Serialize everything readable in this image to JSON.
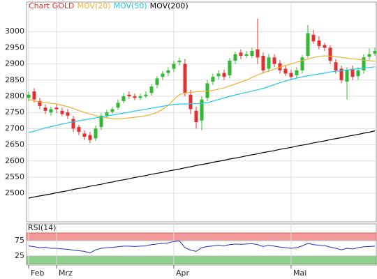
{
  "chart_data": [
    {
      "type": "candlestick",
      "title": "Chart GOLD",
      "title_color": "#e03030",
      "up_color": "#33b833",
      "down_color": "#e03030",
      "open": [
        2795,
        2815,
        2785,
        2765,
        2750,
        2765,
        2755,
        2750,
        2730,
        2705,
        2685,
        2680,
        2670,
        2705,
        2740,
        2752,
        2765,
        2785,
        2805,
        2800,
        2795,
        2800,
        2810,
        2835,
        2860,
        2872,
        2885,
        2905,
        2900,
        2805,
        2755,
        2725,
        2795,
        2845,
        2862,
        2872,
        2865,
        2910,
        2935,
        2925,
        2925,
        2945,
        2925,
        2885,
        2920,
        2902,
        2885,
        2872,
        2865,
        2880,
        2925,
        2990,
        2972,
        2958,
        2950,
        2905,
        2885,
        2845,
        2885,
        2862,
        2880,
        2922,
        2932
      ],
      "high": [
        2815,
        2825,
        2795,
        2775,
        2768,
        2775,
        2765,
        2760,
        2740,
        2712,
        2695,
        2690,
        2710,
        2748,
        2758,
        2768,
        2790,
        2810,
        2815,
        2808,
        2808,
        2815,
        2838,
        2862,
        2878,
        2890,
        2910,
        2920,
        2915,
        2820,
        2768,
        2800,
        2850,
        2870,
        2880,
        2882,
        2918,
        2938,
        2945,
        2940,
        2950,
        3040,
        2935,
        2930,
        2930,
        2912,
        2895,
        2882,
        2890,
        2928,
        3020,
        3005,
        2985,
        2965,
        2958,
        2915,
        2895,
        2890,
        2895,
        2890,
        2930,
        2948,
        2950
      ],
      "low": [
        2785,
        2780,
        2760,
        2745,
        2740,
        2748,
        2738,
        2730,
        2690,
        2680,
        2665,
        2655,
        2662,
        2695,
        2732,
        2745,
        2758,
        2778,
        2792,
        2788,
        2788,
        2795,
        2802,
        2825,
        2850,
        2862,
        2875,
        2895,
        2800,
        2745,
        2700,
        2695,
        2785,
        2835,
        2852,
        2850,
        2855,
        2900,
        2915,
        2918,
        2918,
        2900,
        2870,
        2875,
        2890,
        2870,
        2862,
        2850,
        2855,
        2870,
        2918,
        2962,
        2945,
        2940,
        2900,
        2870,
        2840,
        2790,
        2850,
        2850,
        2870,
        2912,
        2925
      ],
      "close": [
        2805,
        2790,
        2770,
        2755,
        2760,
        2760,
        2745,
        2740,
        2700,
        2690,
        2675,
        2665,
        2700,
        2740,
        2750,
        2760,
        2780,
        2800,
        2800,
        2795,
        2800,
        2805,
        2830,
        2855,
        2870,
        2880,
        2900,
        2910,
        2810,
        2760,
        2720,
        2790,
        2840,
        2860,
        2870,
        2860,
        2910,
        2930,
        2925,
        2930,
        2940,
        2920,
        2880,
        2920,
        2900,
        2880,
        2870,
        2860,
        2880,
        2920,
        2995,
        2970,
        2955,
        2950,
        2910,
        2880,
        2850,
        2880,
        2860,
        2880,
        2920,
        2930,
        2940
      ],
      "series": [
        {
          "name": "MOV(20)",
          "color": "#f0b030",
          "values": [
            2790,
            2786,
            2782,
            2780,
            2778,
            2776,
            2772,
            2768,
            2762,
            2756,
            2750,
            2745,
            2740,
            2736,
            2733,
            2731,
            2730,
            2731,
            2733,
            2735,
            2737,
            2740,
            2744,
            2750,
            2760,
            2772,
            2790,
            2805,
            2810,
            2812,
            2814,
            2815,
            2816,
            2818,
            2822,
            2826,
            2832,
            2838,
            2844,
            2850,
            2858,
            2866,
            2872,
            2878,
            2884,
            2890,
            2895,
            2900,
            2905,
            2910,
            2915,
            2920,
            2923,
            2925,
            2924,
            2922,
            2920,
            2918,
            2916,
            2914,
            2912,
            2910,
            2908
          ]
        },
        {
          "name": "MOV(50)",
          "color": "#20c8e8",
          "values": [
            2688,
            2692,
            2697,
            2702,
            2706,
            2710,
            2714,
            2718,
            2721,
            2724,
            2727,
            2730,
            2733,
            2736,
            2739,
            2742,
            2745,
            2748,
            2751,
            2754,
            2757,
            2760,
            2763,
            2766,
            2769,
            2772,
            2775,
            2776,
            2776,
            2777,
            2777,
            2778,
            2780,
            2785,
            2790,
            2795,
            2800,
            2804,
            2808,
            2812,
            2816,
            2820,
            2824,
            2830,
            2836,
            2842,
            2847,
            2852,
            2856,
            2860,
            2863,
            2866,
            2869,
            2872,
            2875,
            2877,
            2879,
            2881,
            2883,
            2885,
            2887,
            2889,
            2891
          ]
        },
        {
          "name": "MOV(200)",
          "color": "#000000",
          "values": [
            2485,
            2489,
            2492,
            2495,
            2498,
            2502,
            2505,
            2508,
            2512,
            2515,
            2518,
            2522,
            2525,
            2528,
            2532,
            2535,
            2539,
            2542,
            2545,
            2549,
            2552,
            2555,
            2559,
            2562,
            2565,
            2569,
            2572,
            2575,
            2579,
            2582,
            2586,
            2589,
            2592,
            2596,
            2599,
            2602,
            2606,
            2609,
            2612,
            2616,
            2619,
            2622,
            2626,
            2629,
            2632,
            2636,
            2639,
            2642,
            2646,
            2649,
            2652,
            2656,
            2659,
            2662,
            2666,
            2669,
            2672,
            2676,
            2679,
            2682,
            2686,
            2689,
            2693
          ]
        }
      ],
      "ylim": [
        2412,
        3091
      ],
      "yticks": [
        2500,
        2550,
        2600,
        2650,
        2700,
        2750,
        2800,
        2850,
        2900,
        2950,
        3000
      ],
      "grid": true
    },
    {
      "type": "line",
      "title": "RSI(14)",
      "categories": [
        "Feb",
        null,
        null,
        null,
        null,
        "Mrz",
        null,
        null,
        null,
        null,
        null,
        null,
        null,
        null,
        null,
        null,
        null,
        null,
        null,
        null,
        null,
        null,
        null,
        null,
        null,
        null,
        "Apr",
        null,
        null,
        null,
        null,
        null,
        null,
        null,
        null,
        null,
        null,
        null,
        null,
        null,
        null,
        null,
        null,
        null,
        null,
        null,
        null,
        "Mai",
        null,
        null,
        null,
        null,
        null,
        null,
        null,
        null,
        null,
        null,
        null,
        null,
        null,
        null,
        null
      ],
      "color": "#2030c0",
      "overbought_color": "#f59a9a",
      "oversold_color": "#8fd08f",
      "values": [
        58,
        55,
        52,
        53,
        50,
        50,
        48,
        47,
        44,
        42,
        40,
        35,
        45,
        50,
        52,
        53,
        55,
        57,
        57,
        56,
        57,
        58,
        62,
        64,
        66,
        68,
        72,
        74,
        52,
        44,
        40,
        52,
        56,
        58,
        60,
        58,
        62,
        64,
        63,
        64,
        65,
        62,
        56,
        60,
        57,
        54,
        52,
        50,
        52,
        58,
        66,
        62,
        60,
        59,
        54,
        50,
        45,
        50,
        48,
        52,
        55,
        56,
        57
      ],
      "ylim": [
        0,
        100
      ],
      "yticks": [
        25,
        75
      ],
      "grid": true
    }
  ]
}
